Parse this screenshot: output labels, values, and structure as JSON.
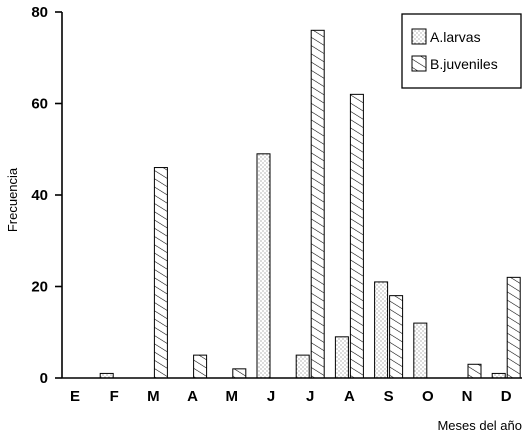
{
  "chart_data": {
    "type": "bar",
    "title": "",
    "xlabel": "Meses del año",
    "ylabel": "Frecuencia",
    "ylim": [
      0,
      80
    ],
    "yticks": [
      0,
      20,
      40,
      60,
      80
    ],
    "categories": [
      "E",
      "F",
      "M",
      "A",
      "M",
      "J",
      "J",
      "A",
      "S",
      "O",
      "N",
      "D"
    ],
    "series": [
      {
        "name": "A.larvas",
        "pattern": "dotted",
        "values": [
          0,
          1,
          0,
          0,
          0,
          49,
          5,
          9,
          21,
          12,
          0,
          1
        ]
      },
      {
        "name": "B.juveniles",
        "pattern": "hatched",
        "values": [
          0,
          0,
          46,
          5,
          2,
          0,
          76,
          62,
          18,
          0,
          3,
          22
        ]
      }
    ],
    "legend_position": "top-right",
    "grid": false,
    "colors": {
      "ink": "#000000",
      "background": "#ffffff",
      "dots": "#555555"
    }
  }
}
